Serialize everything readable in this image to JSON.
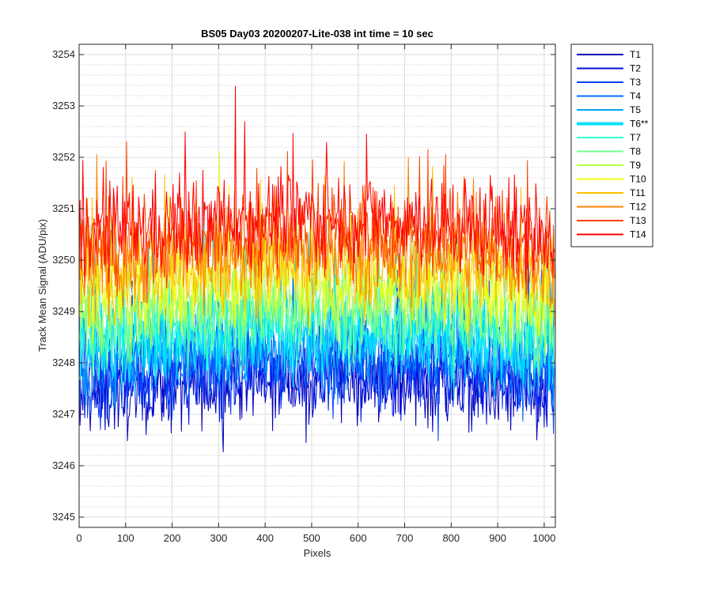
{
  "chart_data": {
    "type": "line",
    "title": "BS05 Day03 20200207-Lite-038 int time = 10 sec",
    "xlabel": "Pixels",
    "ylabel": "Track Mean Signal (ADU/pix)",
    "xlim": [
      0,
      1024
    ],
    "ylim": [
      3244.8,
      3254.2
    ],
    "xticks": [
      0,
      100,
      200,
      300,
      400,
      500,
      600,
      700,
      800,
      900,
      1000
    ],
    "yticks": [
      3245,
      3246,
      3247,
      3248,
      3249,
      3250,
      3251,
      3252,
      3253,
      3254
    ],
    "grid": true,
    "minor_grid_y": true,
    "legend_position": "outside-top-right",
    "series": [
      {
        "name": "T1",
        "color": "#0000b8",
        "mean": 3247.3,
        "noise": 0.75,
        "highlight": false
      },
      {
        "name": "T2",
        "color": "#0010e0",
        "mean": 3247.5,
        "noise": 0.75,
        "highlight": false
      },
      {
        "name": "T3",
        "color": "#0040ff",
        "mean": 3247.7,
        "noise": 0.75,
        "highlight": false
      },
      {
        "name": "T4",
        "color": "#0070ff",
        "mean": 3247.9,
        "noise": 0.75,
        "highlight": false
      },
      {
        "name": "T5",
        "color": "#00a8ff",
        "mean": 3248.1,
        "noise": 0.75,
        "highlight": false
      },
      {
        "name": "T6**",
        "color": "#00e0ff",
        "mean": 3248.3,
        "noise": 0.75,
        "highlight": true
      },
      {
        "name": "T7",
        "color": "#30ffd0",
        "mean": 3248.5,
        "noise": 0.75,
        "highlight": false
      },
      {
        "name": "T8",
        "color": "#70ff90",
        "mean": 3248.7,
        "noise": 0.75,
        "highlight": false
      },
      {
        "name": "T9",
        "color": "#b0ff50",
        "mean": 3249.0,
        "noise": 0.75,
        "highlight": false
      },
      {
        "name": "T10",
        "color": "#f0ff10",
        "mean": 3249.3,
        "noise": 0.75,
        "highlight": false
      },
      {
        "name": "T11",
        "color": "#ffc000",
        "mean": 3249.6,
        "noise": 0.8,
        "highlight": false
      },
      {
        "name": "T12",
        "color": "#ff8000",
        "mean": 3249.9,
        "noise": 0.8,
        "highlight": false
      },
      {
        "name": "T13",
        "color": "#ff4000",
        "mean": 3250.2,
        "noise": 0.8,
        "highlight": false
      },
      {
        "name": "T14",
        "color": "#ff0000",
        "mean": 3250.5,
        "noise": 0.8,
        "highlight": false
      }
    ]
  }
}
